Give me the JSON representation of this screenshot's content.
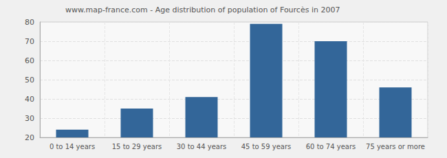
{
  "chart_data": {
    "type": "bar",
    "title": "www.map-france.com - Age distribution of population of Fourcès in 2007",
    "categories": [
      "0 to 14 years",
      "15 to 29 years",
      "30 to 44 years",
      "45 to 59 years",
      "60 to 74 years",
      "75 years or more"
    ],
    "values": [
      24,
      35,
      41,
      79,
      70,
      46
    ],
    "color": "#336699",
    "ylim": [
      20,
      80
    ],
    "yticks": [
      20,
      30,
      40,
      50,
      60,
      70,
      80
    ],
    "grid": true
  }
}
